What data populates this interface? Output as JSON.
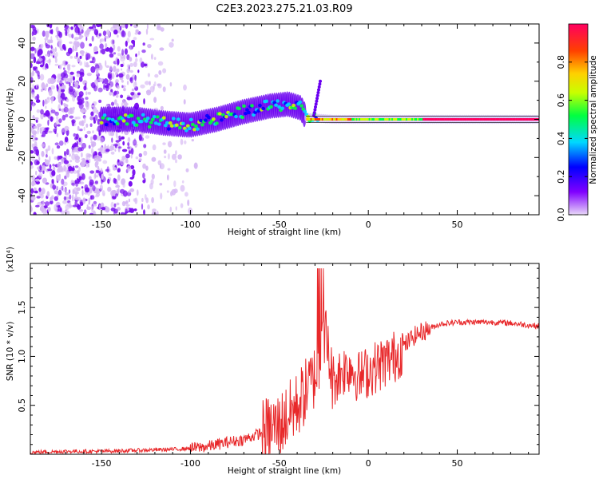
{
  "figure_title": "C2E3.2023.275.21.03.R09",
  "chart_data": [
    {
      "type": "heatmap",
      "xlabel": "Height of straight line (km)",
      "ylabel": "Frequency (Hz)",
      "xlim": [
        -190,
        96
      ],
      "ylim": [
        -50,
        50
      ],
      "x_ticks": [
        -150,
        -100,
        -50,
        0,
        50
      ],
      "y_ticks": [
        -40,
        -20,
        0,
        20,
        40
      ],
      "colorbar": {
        "label": "Normalized spectral amplitude",
        "range": [
          0,
          1
        ],
        "ticks": [
          "0.0",
          "0.2",
          "0.4",
          "0.6",
          "0.8"
        ],
        "tick_values": [
          0,
          0.2,
          0.4,
          0.6,
          0.8
        ],
        "colors": [
          "#e8d8f8",
          "#8000ff",
          "#0000ff",
          "#00d8ff",
          "#00ff40",
          "#c8ff00",
          "#ffd000",
          "#ff4000",
          "#ff0060"
        ]
      },
      "centre_track": {
        "x": [
          -145,
          -130,
          -115,
          -100,
          -85,
          -70,
          -55,
          -45,
          -38,
          -35,
          -20,
          0,
          20,
          40,
          60,
          80,
          96
        ],
        "frequency": [
          0,
          0,
          -2,
          -3,
          0,
          4,
          7,
          8,
          6,
          1,
          0,
          0,
          0,
          0,
          0,
          0,
          0
        ]
      }
    },
    {
      "type": "line",
      "xlabel": "Height of straight line (km)",
      "ylabel": "SNR (10 * v/v)",
      "y_multiplier": "(x10⁴)",
      "xlim": [
        -190,
        96
      ],
      "ylim": [
        0,
        1.95
      ],
      "x_ticks": [
        -150,
        -100,
        -50,
        0,
        50
      ],
      "y_ticks": [
        0.5,
        1.0,
        1.5
      ],
      "series": [
        {
          "color": "#e8282a",
          "x": [
            -190,
            -170,
            -150,
            -130,
            -110,
            -100,
            -90,
            -80,
            -70,
            -60,
            -50,
            -45,
            -40,
            -35,
            -30,
            -27,
            -25,
            -20,
            -15,
            -10,
            -5,
            0,
            5,
            10,
            15,
            20,
            25,
            30,
            40,
            50,
            60,
            70,
            80,
            90,
            96
          ],
          "y": [
            0.02,
            0.03,
            0.03,
            0.04,
            0.05,
            0.06,
            0.08,
            0.12,
            0.15,
            0.22,
            0.3,
            0.4,
            0.5,
            0.65,
            0.8,
            0.95,
            1.3,
            0.75,
            0.85,
            0.9,
            0.78,
            0.85,
            0.9,
            0.95,
            1.0,
            1.1,
            1.2,
            1.25,
            1.33,
            1.35,
            1.35,
            1.35,
            1.34,
            1.32,
            1.31
          ]
        }
      ]
    }
  ]
}
